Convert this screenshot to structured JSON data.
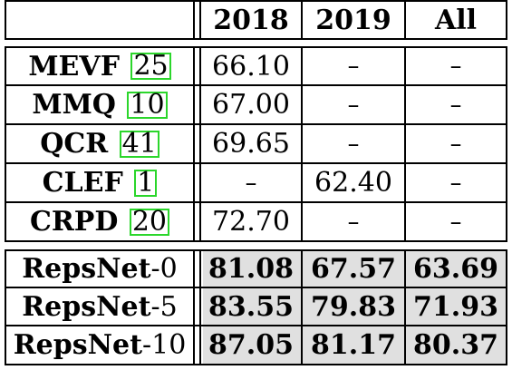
{
  "header": {
    "col_2018": "2018",
    "col_2019": "2019",
    "col_all": "All"
  },
  "prior_methods": [
    {
      "name": "MEVF",
      "ref": "25",
      "v2018": "66.10",
      "v2019": "–",
      "all": "–"
    },
    {
      "name": "MMQ",
      "ref": "10",
      "v2018": "67.00",
      "v2019": "–",
      "all": "–"
    },
    {
      "name": "QCR",
      "ref": "41",
      "v2018": "69.65",
      "v2019": "–",
      "all": "–"
    },
    {
      "name": "CLEF",
      "ref": "1",
      "v2018": "–",
      "v2019": "62.40",
      "all": "–"
    },
    {
      "name": "CRPD",
      "ref": "20",
      "v2018": "72.70",
      "v2019": "–",
      "all": "–"
    }
  ],
  "ours": [
    {
      "name": "RepsNet",
      "suffix": "-0",
      "v2018": "81.08",
      "v2019": "67.57",
      "all": "63.69"
    },
    {
      "name": "RepsNet",
      "suffix": "-5",
      "v2018": "83.55",
      "v2019": "79.83",
      "all": "71.93"
    },
    {
      "name": "RepsNet",
      "suffix": "-10",
      "v2018": "87.05",
      "v2019": "81.17",
      "all": "80.37"
    }
  ],
  "colors": {
    "shade": "#e0e0e0",
    "citation_box": "#2bd62b"
  }
}
